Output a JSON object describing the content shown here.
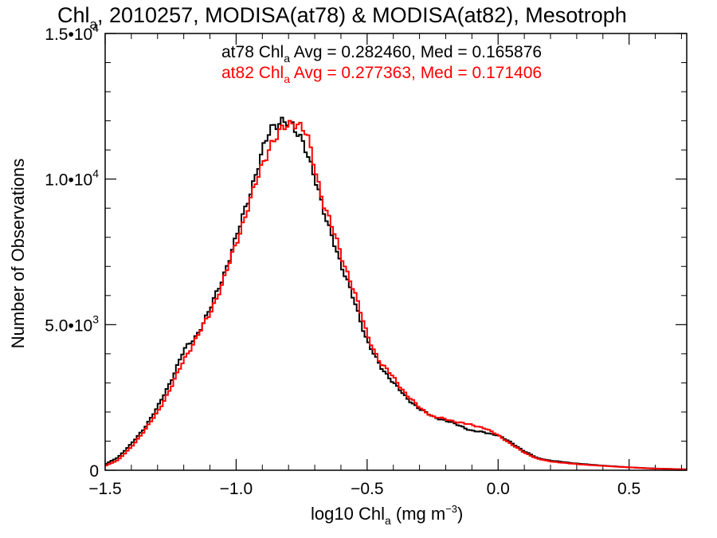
{
  "chart_data": {
    "type": "line",
    "title_main": "Chl",
    "title_sub": "a",
    "title_rest": ", 2010257, MODISA(at78) & MODISA(at82), Mesotroph",
    "xlabel_main": "log10 Chl",
    "xlabel_sub": "a",
    "xlabel_unit": " (mg m",
    "xlabel_exp": "−3",
    "xlabel_close": ")",
    "ylabel": "Number of Observations",
    "xlim": [
      -1.5,
      0.72
    ],
    "ylim": [
      0,
      15000
    ],
    "xticks": [
      {
        "value": -1.5,
        "label": "−1.5"
      },
      {
        "value": -1.0,
        "label": "−1.0"
      },
      {
        "value": -0.5,
        "label": "−0.5"
      },
      {
        "value": 0.0,
        "label": "0.0"
      },
      {
        "value": 0.5,
        "label": "0.5"
      }
    ],
    "yticks": [
      {
        "value": 0,
        "label": "0",
        "exp": ""
      },
      {
        "value": 5000,
        "label": "5.0•10",
        "exp": "3"
      },
      {
        "value": 10000,
        "label": "1.0•10",
        "exp": "4"
      },
      {
        "value": 15000,
        "label": "1.5•10",
        "exp": "4"
      }
    ],
    "annotations": [
      {
        "pre": "at78 Chl",
        "sub": "a",
        "post": " Avg = 0.282460, Med = 0.165876",
        "color": "#000000"
      },
      {
        "pre": "at82 Chl",
        "sub": "a",
        "post": " Avg = 0.277363, Med = 0.171406",
        "color": "#ff0000"
      }
    ],
    "series": [
      {
        "color": "#000000",
        "points": [
          [
            -1.5,
            200
          ],
          [
            -1.45,
            450
          ],
          [
            -1.4,
            900
          ],
          [
            -1.35,
            1450
          ],
          [
            -1.3,
            2150
          ],
          [
            -1.25,
            3050
          ],
          [
            -1.2,
            4100
          ],
          [
            -1.15,
            4650
          ],
          [
            -1.1,
            5500
          ],
          [
            -1.05,
            6650
          ],
          [
            -1.0,
            7950
          ],
          [
            -0.95,
            9450
          ],
          [
            -0.9,
            10900
          ],
          [
            -0.87,
            11700
          ],
          [
            -0.85,
            11900
          ],
          [
            -0.83,
            12050
          ],
          [
            -0.8,
            11900
          ],
          [
            -0.77,
            11600
          ],
          [
            -0.74,
            11300
          ],
          [
            -0.7,
            10000
          ],
          [
            -0.67,
            9000
          ],
          [
            -0.63,
            8000
          ],
          [
            -0.6,
            7000
          ],
          [
            -0.55,
            5900
          ],
          [
            -0.5,
            4400
          ],
          [
            -0.45,
            3600
          ],
          [
            -0.4,
            3000
          ],
          [
            -0.35,
            2500
          ],
          [
            -0.3,
            2100
          ],
          [
            -0.25,
            1850
          ],
          [
            -0.2,
            1700
          ],
          [
            -0.15,
            1550
          ],
          [
            -0.1,
            1350
          ],
          [
            -0.05,
            1300
          ],
          [
            0.0,
            1200
          ],
          [
            0.05,
            950
          ],
          [
            0.1,
            650
          ],
          [
            0.15,
            420
          ],
          [
            0.2,
            330
          ],
          [
            0.3,
            230
          ],
          [
            0.4,
            160
          ],
          [
            0.5,
            100
          ],
          [
            0.6,
            60
          ],
          [
            0.72,
            30
          ]
        ]
      },
      {
        "color": "#ff0000",
        "points": [
          [
            -1.5,
            150
          ],
          [
            -1.45,
            350
          ],
          [
            -1.4,
            800
          ],
          [
            -1.35,
            1350
          ],
          [
            -1.3,
            2000
          ],
          [
            -1.25,
            2800
          ],
          [
            -1.2,
            3800
          ],
          [
            -1.15,
            4550
          ],
          [
            -1.1,
            5400
          ],
          [
            -1.05,
            6450
          ],
          [
            -1.0,
            7800
          ],
          [
            -0.95,
            9150
          ],
          [
            -0.9,
            10500
          ],
          [
            -0.87,
            11200
          ],
          [
            -0.84,
            11500
          ],
          [
            -0.81,
            11800
          ],
          [
            -0.78,
            12000
          ],
          [
            -0.76,
            11900
          ],
          [
            -0.73,
            11500
          ],
          [
            -0.7,
            10400
          ],
          [
            -0.67,
            9300
          ],
          [
            -0.63,
            8250
          ],
          [
            -0.6,
            7400
          ],
          [
            -0.55,
            6200
          ],
          [
            -0.5,
            4650
          ],
          [
            -0.45,
            3700
          ],
          [
            -0.4,
            3200
          ],
          [
            -0.35,
            2600
          ],
          [
            -0.3,
            2150
          ],
          [
            -0.25,
            1850
          ],
          [
            -0.2,
            1750
          ],
          [
            -0.15,
            1650
          ],
          [
            -0.1,
            1550
          ],
          [
            -0.05,
            1450
          ],
          [
            0.0,
            1200
          ],
          [
            0.05,
            900
          ],
          [
            0.1,
            600
          ],
          [
            0.15,
            400
          ],
          [
            0.2,
            300
          ],
          [
            0.3,
            210
          ],
          [
            0.4,
            150
          ],
          [
            0.5,
            100
          ],
          [
            0.6,
            55
          ],
          [
            0.72,
            30
          ]
        ]
      }
    ]
  }
}
